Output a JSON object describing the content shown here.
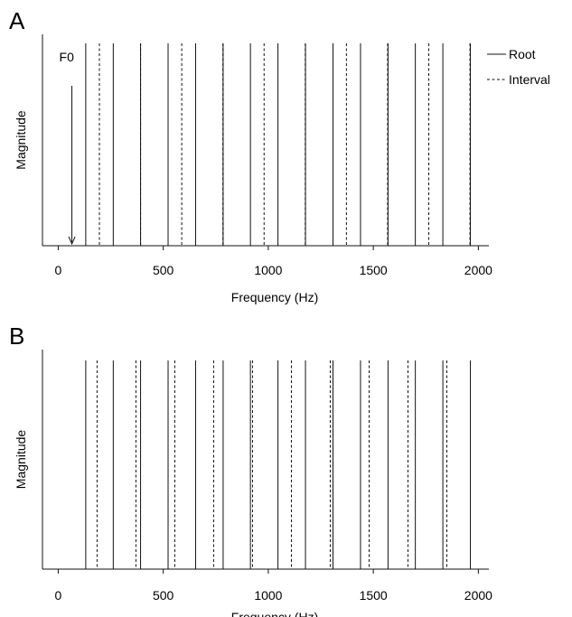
{
  "chart_data": [
    {
      "type": "line",
      "panel_label": "A",
      "xlabel": "Frequency (Hz)",
      "ylabel": "Magnitude",
      "xlim": [
        -75,
        2050
      ],
      "xticks": [
        0,
        500,
        1000,
        1500,
        2000
      ],
      "grid": false,
      "legend_position": "top-right",
      "annotation": "F0",
      "annotation_x": 65,
      "series": [
        {
          "name": "Root",
          "style": "solid",
          "values": [
            131,
            262,
            392,
            523,
            654,
            785,
            915,
            1046,
            1177,
            1308,
            1439,
            1570,
            1700,
            1831,
            1962
          ]
        },
        {
          "name": "Interval",
          "style": "dashed",
          "values": [
            196,
            392,
            588,
            784,
            980,
            1176,
            1372,
            1568,
            1764,
            1960
          ]
        }
      ]
    },
    {
      "type": "line",
      "panel_label": "B",
      "xlabel": "Frequency (Hz)",
      "ylabel": "Magnitude",
      "xlim": [
        -75,
        2050
      ],
      "xticks": [
        0,
        500,
        1000,
        1500,
        2000
      ],
      "grid": false,
      "series": [
        {
          "name": "Root",
          "style": "solid",
          "values": [
            131,
            262,
            392,
            523,
            654,
            785,
            915,
            1046,
            1177,
            1308,
            1439,
            1570,
            1700,
            1831,
            1962
          ]
        },
        {
          "name": "Interval",
          "style": "dashed",
          "values": [
            185,
            370,
            555,
            740,
            925,
            1110,
            1295,
            1480,
            1665,
            1850
          ]
        }
      ]
    }
  ]
}
